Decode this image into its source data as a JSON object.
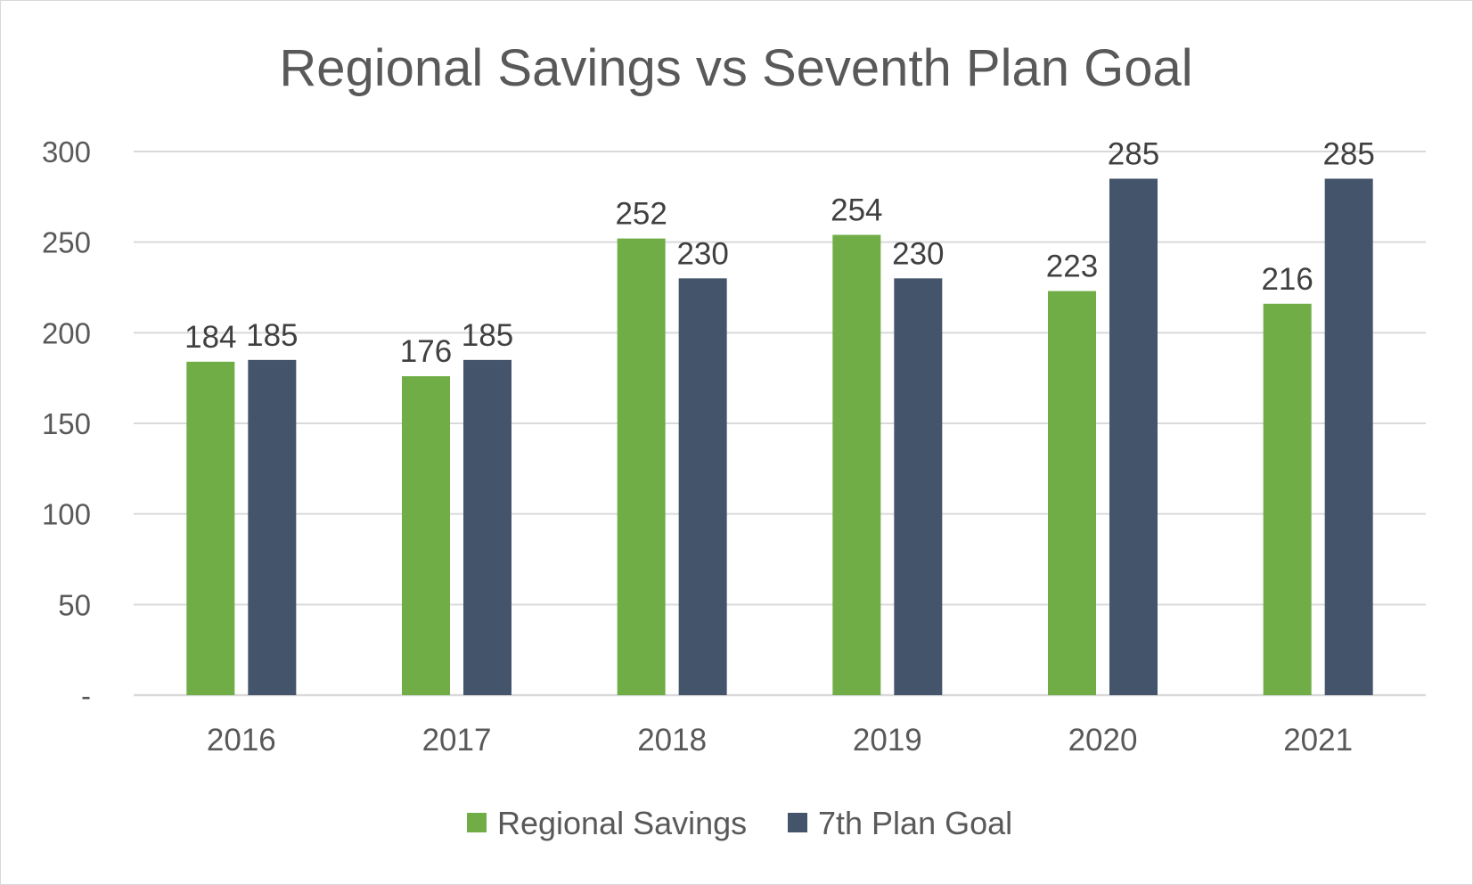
{
  "chart_data": {
    "type": "bar",
    "title": "Regional Savings vs Seventh Plan Goal",
    "xlabel": "",
    "ylabel": "",
    "categories": [
      "2016",
      "2017",
      "2018",
      "2019",
      "2020",
      "2021"
    ],
    "series": [
      {
        "name": "Regional Savings",
        "values": [
          184,
          176,
          252,
          254,
          223,
          216
        ],
        "color": "#70AD47"
      },
      {
        "name": "7th Plan Goal",
        "values": [
          185,
          185,
          230,
          230,
          285,
          285
        ],
        "color": "#44546A"
      }
    ],
    "ylim": [
      0,
      300
    ],
    "yticks": [
      0,
      50,
      100,
      150,
      200,
      250,
      300
    ],
    "ytick_labels": [
      "-",
      "50",
      "100",
      "150",
      "200",
      "250",
      "300"
    ],
    "grid": true,
    "legend": "bottom",
    "data_labels": true
  }
}
